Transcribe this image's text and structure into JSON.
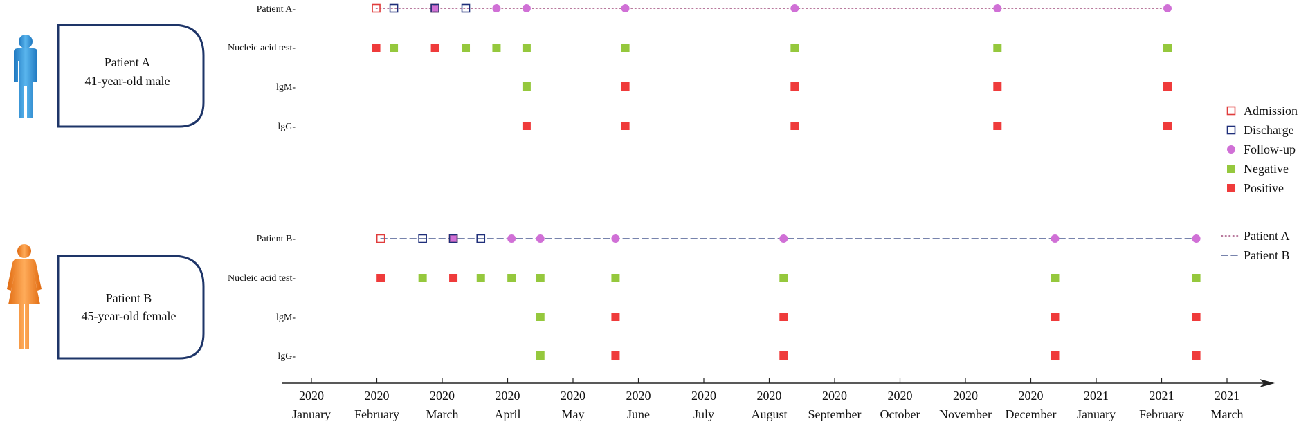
{
  "chart_data": {
    "type": "scatter",
    "x_axis": {
      "ticks": [
        {
          "year": "2020",
          "month": "January"
        },
        {
          "year": "2020",
          "month": "February"
        },
        {
          "year": "2020",
          "month": "March"
        },
        {
          "year": "2020",
          "month": "April"
        },
        {
          "year": "2020",
          "month": "May"
        },
        {
          "year": "2020",
          "month": "June"
        },
        {
          "year": "2020",
          "month": "July"
        },
        {
          "year": "2020",
          "month": "August"
        },
        {
          "year": "2020",
          "month": "September"
        },
        {
          "year": "2020",
          "month": "October"
        },
        {
          "year": "2020",
          "month": "November"
        },
        {
          "year": "2020",
          "month": "December"
        },
        {
          "year": "2021",
          "month": "January"
        },
        {
          "year": "2021",
          "month": "February"
        },
        {
          "year": "2021",
          "month": "March"
        }
      ]
    },
    "legend": {
      "markers": [
        {
          "label": "Admission",
          "marker": "admission"
        },
        {
          "label": "Discharge",
          "marker": "discharge"
        },
        {
          "label": "Follow-up",
          "marker": "followup"
        },
        {
          "label": "Negative",
          "marker": "negative"
        },
        {
          "label": "Positive",
          "marker": "positive"
        }
      ],
      "lines": [
        {
          "label": "Patient A",
          "style": "dotted"
        },
        {
          "label": "Patient B",
          "style": "dashed"
        }
      ]
    },
    "colors": {
      "admission": "#e03c3c",
      "discharge": "#1f2f7a",
      "followup": "#d070d6",
      "negative": "#95c83d",
      "positive": "#ef3b3b",
      "patient_a_line": "#a04c7c",
      "patient_b_line": "#4a5a90",
      "panel_border": "#1e3568",
      "male_icon": "#3a9ad9",
      "female_icon": "#ef8a2a"
    },
    "patients": [
      {
        "title": "Patient A",
        "description": "41-year-old male",
        "icon": "male-person-icon",
        "line_style": "dotted",
        "row_labels": [
          "Patient A-",
          "Nucleic acid test-",
          "lgM-",
          "lgG-"
        ],
        "events": [
          {
            "m": 0.99,
            "type": "admission"
          },
          {
            "m": 1.26,
            "type": "discharge"
          },
          {
            "m": 1.89,
            "type": "admission"
          },
          {
            "m": 1.89,
            "type": "discharge"
          },
          {
            "m": 1.89,
            "type": "followup"
          },
          {
            "m": 2.36,
            "type": "discharge"
          },
          {
            "m": 2.83,
            "type": "followup"
          },
          {
            "m": 3.29,
            "type": "followup"
          },
          {
            "m": 4.8,
            "type": "followup"
          },
          {
            "m": 7.39,
            "type": "followup"
          },
          {
            "m": 10.49,
            "type": "followup"
          },
          {
            "m": 13.09,
            "type": "followup"
          }
        ],
        "nucleic": [
          {
            "m": 0.99,
            "result": "positive"
          },
          {
            "m": 1.26,
            "result": "negative"
          },
          {
            "m": 1.89,
            "result": "positive"
          },
          {
            "m": 2.36,
            "result": "negative"
          },
          {
            "m": 2.83,
            "result": "negative"
          },
          {
            "m": 3.29,
            "result": "negative"
          },
          {
            "m": 4.8,
            "result": "negative"
          },
          {
            "m": 7.39,
            "result": "negative"
          },
          {
            "m": 10.49,
            "result": "negative"
          },
          {
            "m": 13.09,
            "result": "negative"
          }
        ],
        "igm": [
          {
            "m": 3.29,
            "result": "negative"
          },
          {
            "m": 4.8,
            "result": "positive"
          },
          {
            "m": 7.39,
            "result": "positive"
          },
          {
            "m": 10.49,
            "result": "positive"
          },
          {
            "m": 13.09,
            "result": "positive"
          }
        ],
        "igg": [
          {
            "m": 3.29,
            "result": "positive"
          },
          {
            "m": 4.8,
            "result": "positive"
          },
          {
            "m": 7.39,
            "result": "positive"
          },
          {
            "m": 10.49,
            "result": "positive"
          },
          {
            "m": 13.09,
            "result": "positive"
          }
        ]
      },
      {
        "title": "Patient B",
        "description": "45-year-old female",
        "icon": "female-person-icon",
        "line_style": "dashed",
        "row_labels": [
          "Patient B-",
          "Nucleic acid test-",
          "lgM-",
          "lgG-"
        ],
        "events": [
          {
            "m": 1.06,
            "type": "admission"
          },
          {
            "m": 1.7,
            "type": "discharge"
          },
          {
            "m": 2.17,
            "type": "admission"
          },
          {
            "m": 2.17,
            "type": "discharge"
          },
          {
            "m": 2.17,
            "type": "followup"
          },
          {
            "m": 2.59,
            "type": "discharge"
          },
          {
            "m": 3.06,
            "type": "followup"
          },
          {
            "m": 3.5,
            "type": "followup"
          },
          {
            "m": 4.65,
            "type": "followup"
          },
          {
            "m": 7.22,
            "type": "followup"
          },
          {
            "m": 11.37,
            "type": "followup"
          },
          {
            "m": 13.53,
            "type": "followup"
          }
        ],
        "nucleic": [
          {
            "m": 1.06,
            "result": "positive"
          },
          {
            "m": 1.7,
            "result": "negative"
          },
          {
            "m": 2.17,
            "result": "positive"
          },
          {
            "m": 2.59,
            "result": "negative"
          },
          {
            "m": 3.06,
            "result": "negative"
          },
          {
            "m": 3.5,
            "result": "negative"
          },
          {
            "m": 4.65,
            "result": "negative"
          },
          {
            "m": 7.22,
            "result": "negative"
          },
          {
            "m": 11.37,
            "result": "negative"
          },
          {
            "m": 13.53,
            "result": "negative"
          }
        ],
        "igm": [
          {
            "m": 3.5,
            "result": "negative"
          },
          {
            "m": 4.65,
            "result": "positive"
          },
          {
            "m": 7.22,
            "result": "positive"
          },
          {
            "m": 11.37,
            "result": "positive"
          },
          {
            "m": 13.53,
            "result": "positive"
          }
        ],
        "igg": [
          {
            "m": 3.5,
            "result": "negative"
          },
          {
            "m": 4.65,
            "result": "positive"
          },
          {
            "m": 7.22,
            "result": "positive"
          },
          {
            "m": 11.37,
            "result": "positive"
          },
          {
            "m": 13.53,
            "result": "positive"
          }
        ]
      }
    ]
  }
}
